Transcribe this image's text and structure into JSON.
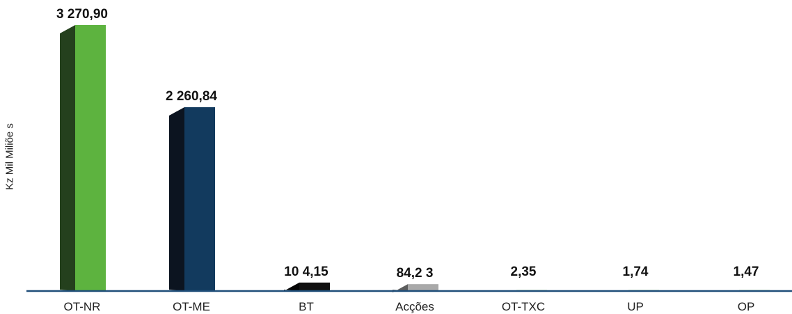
{
  "chart_data": {
    "type": "bar",
    "title": "",
    "xlabel": "",
    "ylabel": "Kz Mil Miliõe s",
    "ylim": [
      0,
      3400
    ],
    "grid": false,
    "legend": "none",
    "categories": [
      "OT-NR",
      "OT-ME",
      "BT",
      "Acções",
      "OT-TXC",
      "UP",
      "OP"
    ],
    "values": [
      3270.9,
      2260.84,
      104.15,
      84.23,
      2.35,
      1.74,
      1.47
    ],
    "value_labels": [
      "3 270,90",
      "2 260,84",
      "10 4,15",
      "84,2 3",
      "2,35",
      "1,74",
      "1,47"
    ],
    "colors": {
      "front": [
        "#5db33f",
        "#123a5e",
        "#111111",
        "#a9a9a9",
        "#5db33f",
        "#5db33f",
        "#5db33f"
      ],
      "side": [
        "#24401d",
        "#0c1420",
        "#050505",
        "#5d5d5d",
        "#24401d",
        "#24401d",
        "#24401d"
      ],
      "top": [
        "#4c9a33",
        "#1b4a73",
        "#2a2a2a",
        "#c8c8c8",
        "#4c9a33",
        "#4c9a33",
        "#4c9a33"
      ],
      "axis": "#1f4e79"
    }
  }
}
